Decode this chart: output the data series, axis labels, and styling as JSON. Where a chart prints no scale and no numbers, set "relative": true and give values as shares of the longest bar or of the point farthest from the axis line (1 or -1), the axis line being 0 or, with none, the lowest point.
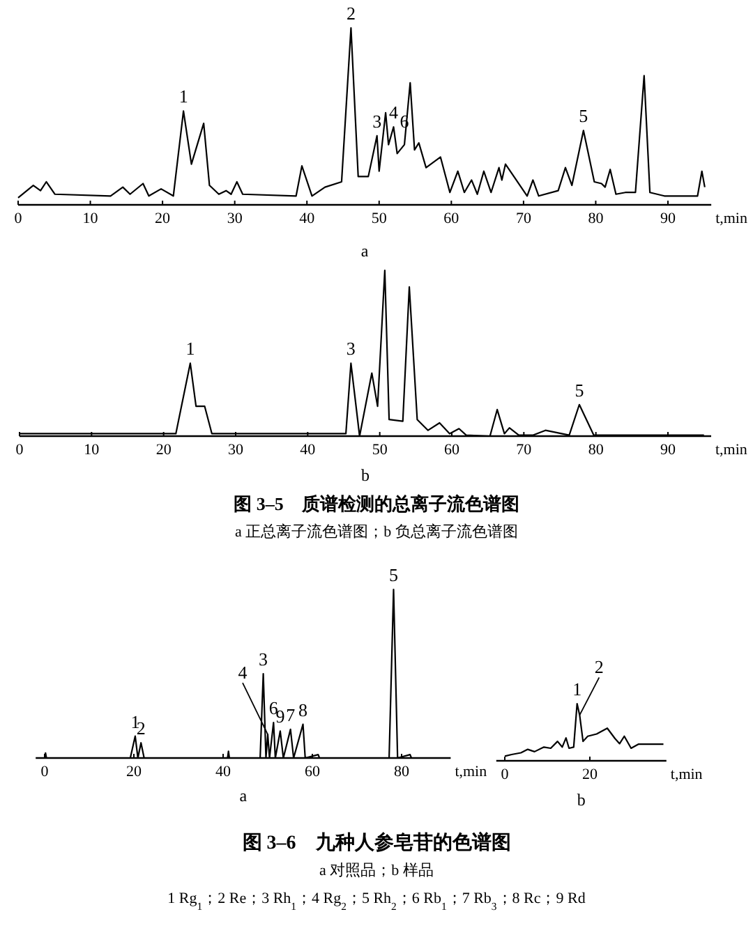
{
  "chart_data": [
    {
      "type": "line",
      "relative": true,
      "color": "#000000",
      "xlabel": "t,min",
      "xlim": [
        0,
        96
      ],
      "xticks": [
        0,
        10,
        20,
        30,
        40,
        50,
        60,
        70,
        80,
        90
      ],
      "grid": false,
      "x": [
        0,
        2.1,
        3.1,
        3.9,
        5.1,
        12.8,
        14.5,
        15.5,
        17.3,
        18.1,
        19.8,
        21.5,
        22.9,
        24,
        25.7,
        26.5,
        27.8,
        28.8,
        29.5,
        30.3,
        31.1,
        38.5,
        39.3,
        40.7,
        42.5,
        44.8,
        46.1,
        47.1,
        48.5,
        49.7,
        50,
        50.9,
        51.3,
        52,
        52.5,
        53.5,
        54.3,
        54.9,
        55.5,
        56.5,
        58.5,
        59.8,
        60.9,
        61.8,
        62.8,
        63.6,
        64.5,
        65.5,
        66.6,
        67,
        67.5,
        70.5,
        71.3,
        72.1,
        74.8,
        75.8,
        76.7,
        78.3,
        79.8,
        80.8,
        81.3,
        82,
        82.8,
        84.1,
        85.5,
        86.7,
        87.5,
        89.5,
        94.1,
        94.7,
        95.1
      ],
      "values": [
        0.04,
        0.11,
        0.08,
        0.13,
        0.06,
        0.05,
        0.1,
        0.06,
        0.12,
        0.05,
        0.09,
        0.05,
        0.53,
        0.23,
        0.46,
        0.11,
        0.06,
        0.08,
        0.06,
        0.13,
        0.06,
        0.05,
        0.22,
        0.05,
        0.1,
        0.13,
        1,
        0.16,
        0.16,
        0.39,
        0.19,
        0.52,
        0.34,
        0.44,
        0.29,
        0.34,
        0.69,
        0.31,
        0.35,
        0.21,
        0.27,
        0.07,
        0.19,
        0.07,
        0.14,
        0.06,
        0.19,
        0.07,
        0.21,
        0.14,
        0.23,
        0.05,
        0.14,
        0.05,
        0.08,
        0.21,
        0.11,
        0.42,
        0.13,
        0.12,
        0.1,
        0.2,
        0.06,
        0.07,
        0.07,
        0.73,
        0.07,
        0.05,
        0.05,
        0.19,
        0.1
      ],
      "annotations": [
        {
          "text": "1",
          "x": 22.9,
          "y": 0.53
        },
        {
          "text": "2",
          "x": 46.1,
          "y": 1
        },
        {
          "text": "3",
          "x": 49.7,
          "y": 0.39
        },
        {
          "text": "4",
          "x": 52,
          "y": 0.44
        },
        {
          "text": "6",
          "x": 53.5,
          "y": 0.39
        },
        {
          "text": "5",
          "x": 78.3,
          "y": 0.42
        },
        "a"
      ]
    },
    {
      "type": "line",
      "relative": true,
      "color": "#000000",
      "xlabel": "t,min",
      "xlim": [
        0,
        96
      ],
      "xticks": [
        0,
        10,
        20,
        30,
        40,
        50,
        60,
        70,
        80,
        90
      ],
      "grid": false,
      "x": [
        0,
        21.7,
        23.7,
        24.5,
        25.7,
        26.7,
        45.3,
        46,
        47.2,
        48.9,
        49.7,
        50.7,
        51.3,
        53.2,
        54.1,
        55.2,
        56.7,
        58.3,
        59.7,
        61,
        62,
        65.3,
        66.3,
        67.3,
        68,
        69.3,
        71.3,
        73,
        76.3,
        77.7,
        79.7,
        95
      ],
      "values": [
        0.015,
        0.015,
        0.44,
        0.18,
        0.18,
        0.015,
        0.015,
        0.44,
        0,
        0.38,
        0.18,
        1,
        0.1,
        0.09,
        0.9,
        0.1,
        0.035,
        0.08,
        0.015,
        0.045,
        0.006,
        0,
        0.16,
        0.015,
        0.05,
        0.006,
        0.006,
        0.035,
        0.006,
        0.19,
        0.006,
        0.006
      ],
      "annotations": [
        {
          "text": "1",
          "x": 23.7,
          "y": 0.44
        },
        {
          "text": "3",
          "x": 46,
          "y": 0.44
        },
        {
          "text": "5",
          "x": 77.7,
          "y": 0.19
        },
        "b",
        "图 3–5　质谱检测的总离子流色谱图",
        "a 正总离子流色谱图；b 负总离子流色谱图"
      ]
    },
    {
      "type": "line",
      "relative": true,
      "color": "#000000",
      "xlabel": "t,min",
      "xlim": [
        -2,
        91
      ],
      "xticks": [
        0,
        20,
        40,
        60,
        80
      ],
      "grid": false,
      "x": [
        0,
        0.2,
        0.4,
        19.2,
        20.3,
        20.9,
        21.6,
        22.3,
        41,
        41.2,
        41.4,
        48.3,
        49,
        49.6,
        50,
        50.4,
        51.3,
        51.7,
        52.8,
        53.5,
        55.1,
        55.8,
        57.9,
        58.4,
        61.3,
        61.6,
        77.2,
        78.2,
        79.1,
        81.9,
        82.2,
        90.9
      ],
      "values": [
        0,
        0.03,
        0,
        0,
        0.13,
        0,
        0.09,
        0,
        0,
        0.04,
        0,
        0,
        0.5,
        0,
        0.14,
        0,
        0.21,
        0,
        0.16,
        0,
        0.17,
        0,
        0.2,
        0,
        0.02,
        0,
        0,
        1,
        0,
        0.02,
        0,
        0
      ],
      "annotations": [
        {
          "text": "1",
          "x": 20.3,
          "y": 0.13
        },
        {
          "text": "2",
          "x": 21.6,
          "y": 0.09
        },
        {
          "text": "3",
          "x": 49,
          "y": 0.5
        },
        {
          "text": "4",
          "x": 50,
          "y": 0.14
        },
        {
          "text": "6",
          "x": 51.3,
          "y": 0.21
        },
        {
          "text": "9",
          "x": 52.8,
          "y": 0.16
        },
        {
          "text": "7",
          "x": 55.1,
          "y": 0.17
        },
        {
          "text": "8",
          "x": 57.9,
          "y": 0.2
        },
        {
          "text": "5",
          "x": 78.2,
          "y": 1
        },
        "a",
        "图 3–6　九种人参皂苷的色谱图",
        "a 对照品；b 样品",
        "1 Rg$_{1}$；2 Re；3 Rh$_{1}$；4 Rg$_{2}$；5 Rh$_{2}$；6 Rb$_{1}$；7 Rb$_{3}$；8 Rc；9 Rd"
      ]
    },
    {
      "type": "line",
      "relative": true,
      "color": "#000000",
      "xlabel": "t,min",
      "xlim": [
        -2,
        38
      ],
      "xticks": [
        0,
        20
      ],
      "grid": false,
      "x": [
        0,
        1.6,
        3.8,
        5.4,
        7,
        9.2,
        10.8,
        12.4,
        13.5,
        14.4,
        15.1,
        16.2,
        17,
        17.6,
        18.4,
        19.5,
        21.6,
        24.1,
        25.9,
        27,
        28.1,
        29.7,
        31.4,
        37.3
      ],
      "values": [
        0.08,
        0.11,
        0.14,
        0.2,
        0.16,
        0.24,
        0.22,
        0.34,
        0.24,
        0.4,
        0.22,
        0.24,
        1,
        0.8,
        0.34,
        0.43,
        0.47,
        0.57,
        0.39,
        0.3,
        0.43,
        0.22,
        0.29,
        0.29
      ],
      "annotations": [
        {
          "text": "1",
          "x": 17,
          "y": 1
        },
        {
          "text": "2",
          "x": 17.6,
          "y": 0.8
        },
        "b"
      ]
    }
  ]
}
